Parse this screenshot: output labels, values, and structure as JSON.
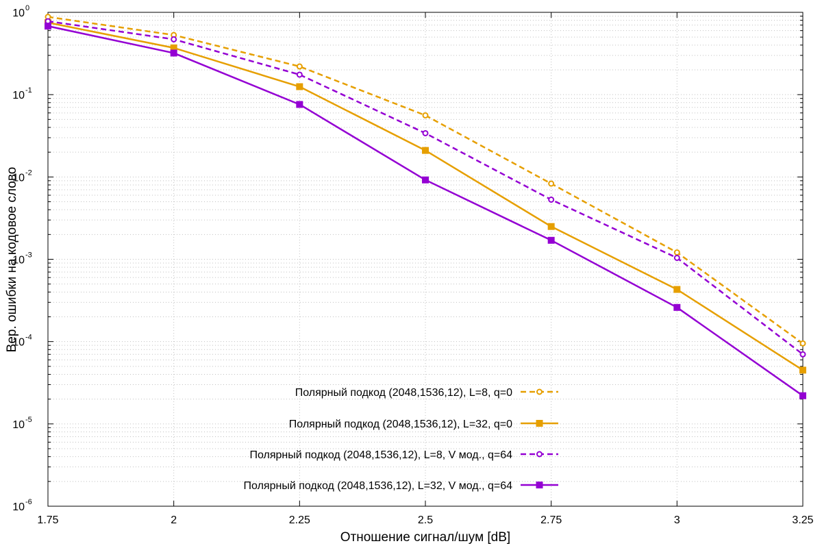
{
  "chart_data": {
    "type": "line",
    "title": "",
    "xlabel": "Отношение сигнал/шум [dB]",
    "ylabel": "Вер. ошибки на кодовое слово",
    "y_scale": "log",
    "xlim": [
      1.75,
      3.25
    ],
    "ylim": [
      1e-06,
      1
    ],
    "x_ticks": [
      "1.75",
      "2",
      "2.25",
      "2.5",
      "2.75",
      "3",
      "3.25"
    ],
    "y_ticks": [
      {
        "base": "10",
        "exp": "-6"
      },
      {
        "base": "10",
        "exp": "-5"
      },
      {
        "base": "10",
        "exp": "-4"
      },
      {
        "base": "10",
        "exp": "-3"
      },
      {
        "base": "10",
        "exp": "-2"
      },
      {
        "base": "10",
        "exp": "-1"
      },
      {
        "base": "10",
        "exp": "0"
      }
    ],
    "grid": true,
    "legend_position": "bottom-center",
    "x": [
      1.75,
      2,
      2.25,
      2.5,
      2.75,
      3,
      3.25
    ],
    "series": [
      {
        "name": "Полярный подкод (2048,1536,12), L=8, q=0",
        "color": "#e69f00",
        "line_style": "dashed",
        "marker": "open-circle",
        "values": [
          0.88,
          0.53,
          0.22,
          0.056,
          0.0083,
          0.00121,
          9.5e-05
        ]
      },
      {
        "name": "Полярный подкод (2048,1536,12), L=32, q=0",
        "color": "#e69f00",
        "line_style": "solid",
        "marker": "filled-square",
        "values": [
          0.75,
          0.37,
          0.125,
          0.021,
          0.0025,
          0.00043,
          4.5e-05
        ]
      },
      {
        "name": "Полярный подкод (2048,1536,12), L=8, V мод., q=64",
        "color": "#9400d3",
        "line_style": "dashed",
        "marker": "open-circle",
        "values": [
          0.78,
          0.47,
          0.175,
          0.034,
          0.0053,
          0.00104,
          7e-05
        ]
      },
      {
        "name": "Полярный подкод (2048,1536,12), L=32, V мод., q=64",
        "color": "#9400d3",
        "line_style": "solid",
        "marker": "filled-square",
        "values": [
          0.68,
          0.32,
          0.076,
          0.0092,
          0.0017,
          0.00026,
          2.2e-05
        ]
      }
    ]
  }
}
